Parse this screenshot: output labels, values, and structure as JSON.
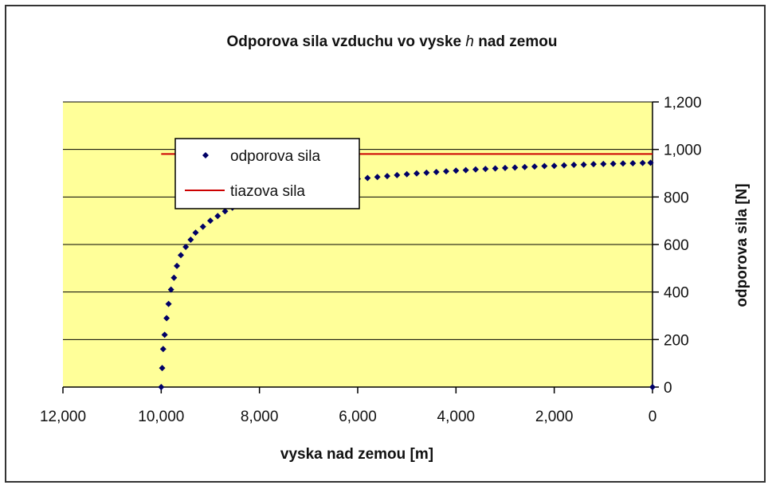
{
  "chart_data": {
    "type": "scatter",
    "title_pre": "Odporova sila vzduchu vo vyske ",
    "title_h": "h",
    "title_post": " nad zemou",
    "xlabel": "vyska nad zemou [m]",
    "ylabel": "odporova sila [N]",
    "xlim": [
      12000,
      0
    ],
    "ylim": [
      0,
      1200
    ],
    "x_reversed": true,
    "y_axis_side": "right",
    "grid": "horizontal",
    "plot_background": "#FFFF99",
    "x_ticks": [
      12000,
      10000,
      8000,
      6000,
      4000,
      2000,
      0
    ],
    "x_tick_labels": [
      "12,000",
      "10,000",
      "8,000",
      "6,000",
      "4,000",
      "2,000",
      "0"
    ],
    "y_ticks": [
      0,
      200,
      400,
      600,
      800,
      1000,
      1200
    ],
    "y_tick_labels": [
      "0",
      "200",
      "400",
      "600",
      "800",
      "1,000",
      "1,200"
    ],
    "legend_position": "top-left",
    "series": [
      {
        "name": "odporova sila",
        "kind": "markers",
        "color": "#000066",
        "points": [
          [
            10000,
            0
          ],
          [
            9980,
            80
          ],
          [
            9960,
            160
          ],
          [
            9930,
            220
          ],
          [
            9890,
            290
          ],
          [
            9850,
            350
          ],
          [
            9800,
            410
          ],
          [
            9740,
            460
          ],
          [
            9680,
            510
          ],
          [
            9600,
            555
          ],
          [
            9500,
            590
          ],
          [
            9400,
            620
          ],
          [
            9300,
            650
          ],
          [
            9150,
            675
          ],
          [
            9000,
            700
          ],
          [
            8850,
            720
          ],
          [
            8700,
            740
          ],
          [
            8550,
            755
          ],
          [
            8400,
            770
          ],
          [
            8250,
            780
          ],
          [
            8100,
            790
          ],
          [
            7950,
            800
          ],
          [
            7800,
            810
          ],
          [
            7650,
            818
          ],
          [
            7500,
            825
          ],
          [
            7350,
            832
          ],
          [
            7200,
            838
          ],
          [
            7050,
            844
          ],
          [
            6900,
            850
          ],
          [
            6750,
            855
          ],
          [
            6600,
            860
          ],
          [
            6450,
            864
          ],
          [
            6300,
            868
          ],
          [
            6150,
            872
          ],
          [
            6000,
            876
          ],
          [
            5800,
            880
          ],
          [
            5600,
            884
          ],
          [
            5400,
            888
          ],
          [
            5200,
            892
          ],
          [
            5000,
            896
          ],
          [
            4800,
            899
          ],
          [
            4600,
            902
          ],
          [
            4400,
            905
          ],
          [
            4200,
            908
          ],
          [
            4000,
            911
          ],
          [
            3800,
            913
          ],
          [
            3600,
            916
          ],
          [
            3400,
            918
          ],
          [
            3200,
            920
          ],
          [
            3000,
            922
          ],
          [
            2800,
            924
          ],
          [
            2600,
            926
          ],
          [
            2400,
            928
          ],
          [
            2200,
            930
          ],
          [
            2000,
            931
          ],
          [
            1800,
            933
          ],
          [
            1600,
            935
          ],
          [
            1400,
            936
          ],
          [
            1200,
            938
          ],
          [
            1000,
            939
          ],
          [
            800,
            940
          ],
          [
            600,
            941
          ],
          [
            400,
            942
          ],
          [
            200,
            943
          ],
          [
            40,
            944
          ],
          [
            0,
            0
          ]
        ]
      },
      {
        "name": "tiazova sila",
        "kind": "line",
        "color": "#CC0000",
        "points": [
          [
            10000,
            981
          ],
          [
            0,
            981
          ]
        ]
      }
    ]
  }
}
